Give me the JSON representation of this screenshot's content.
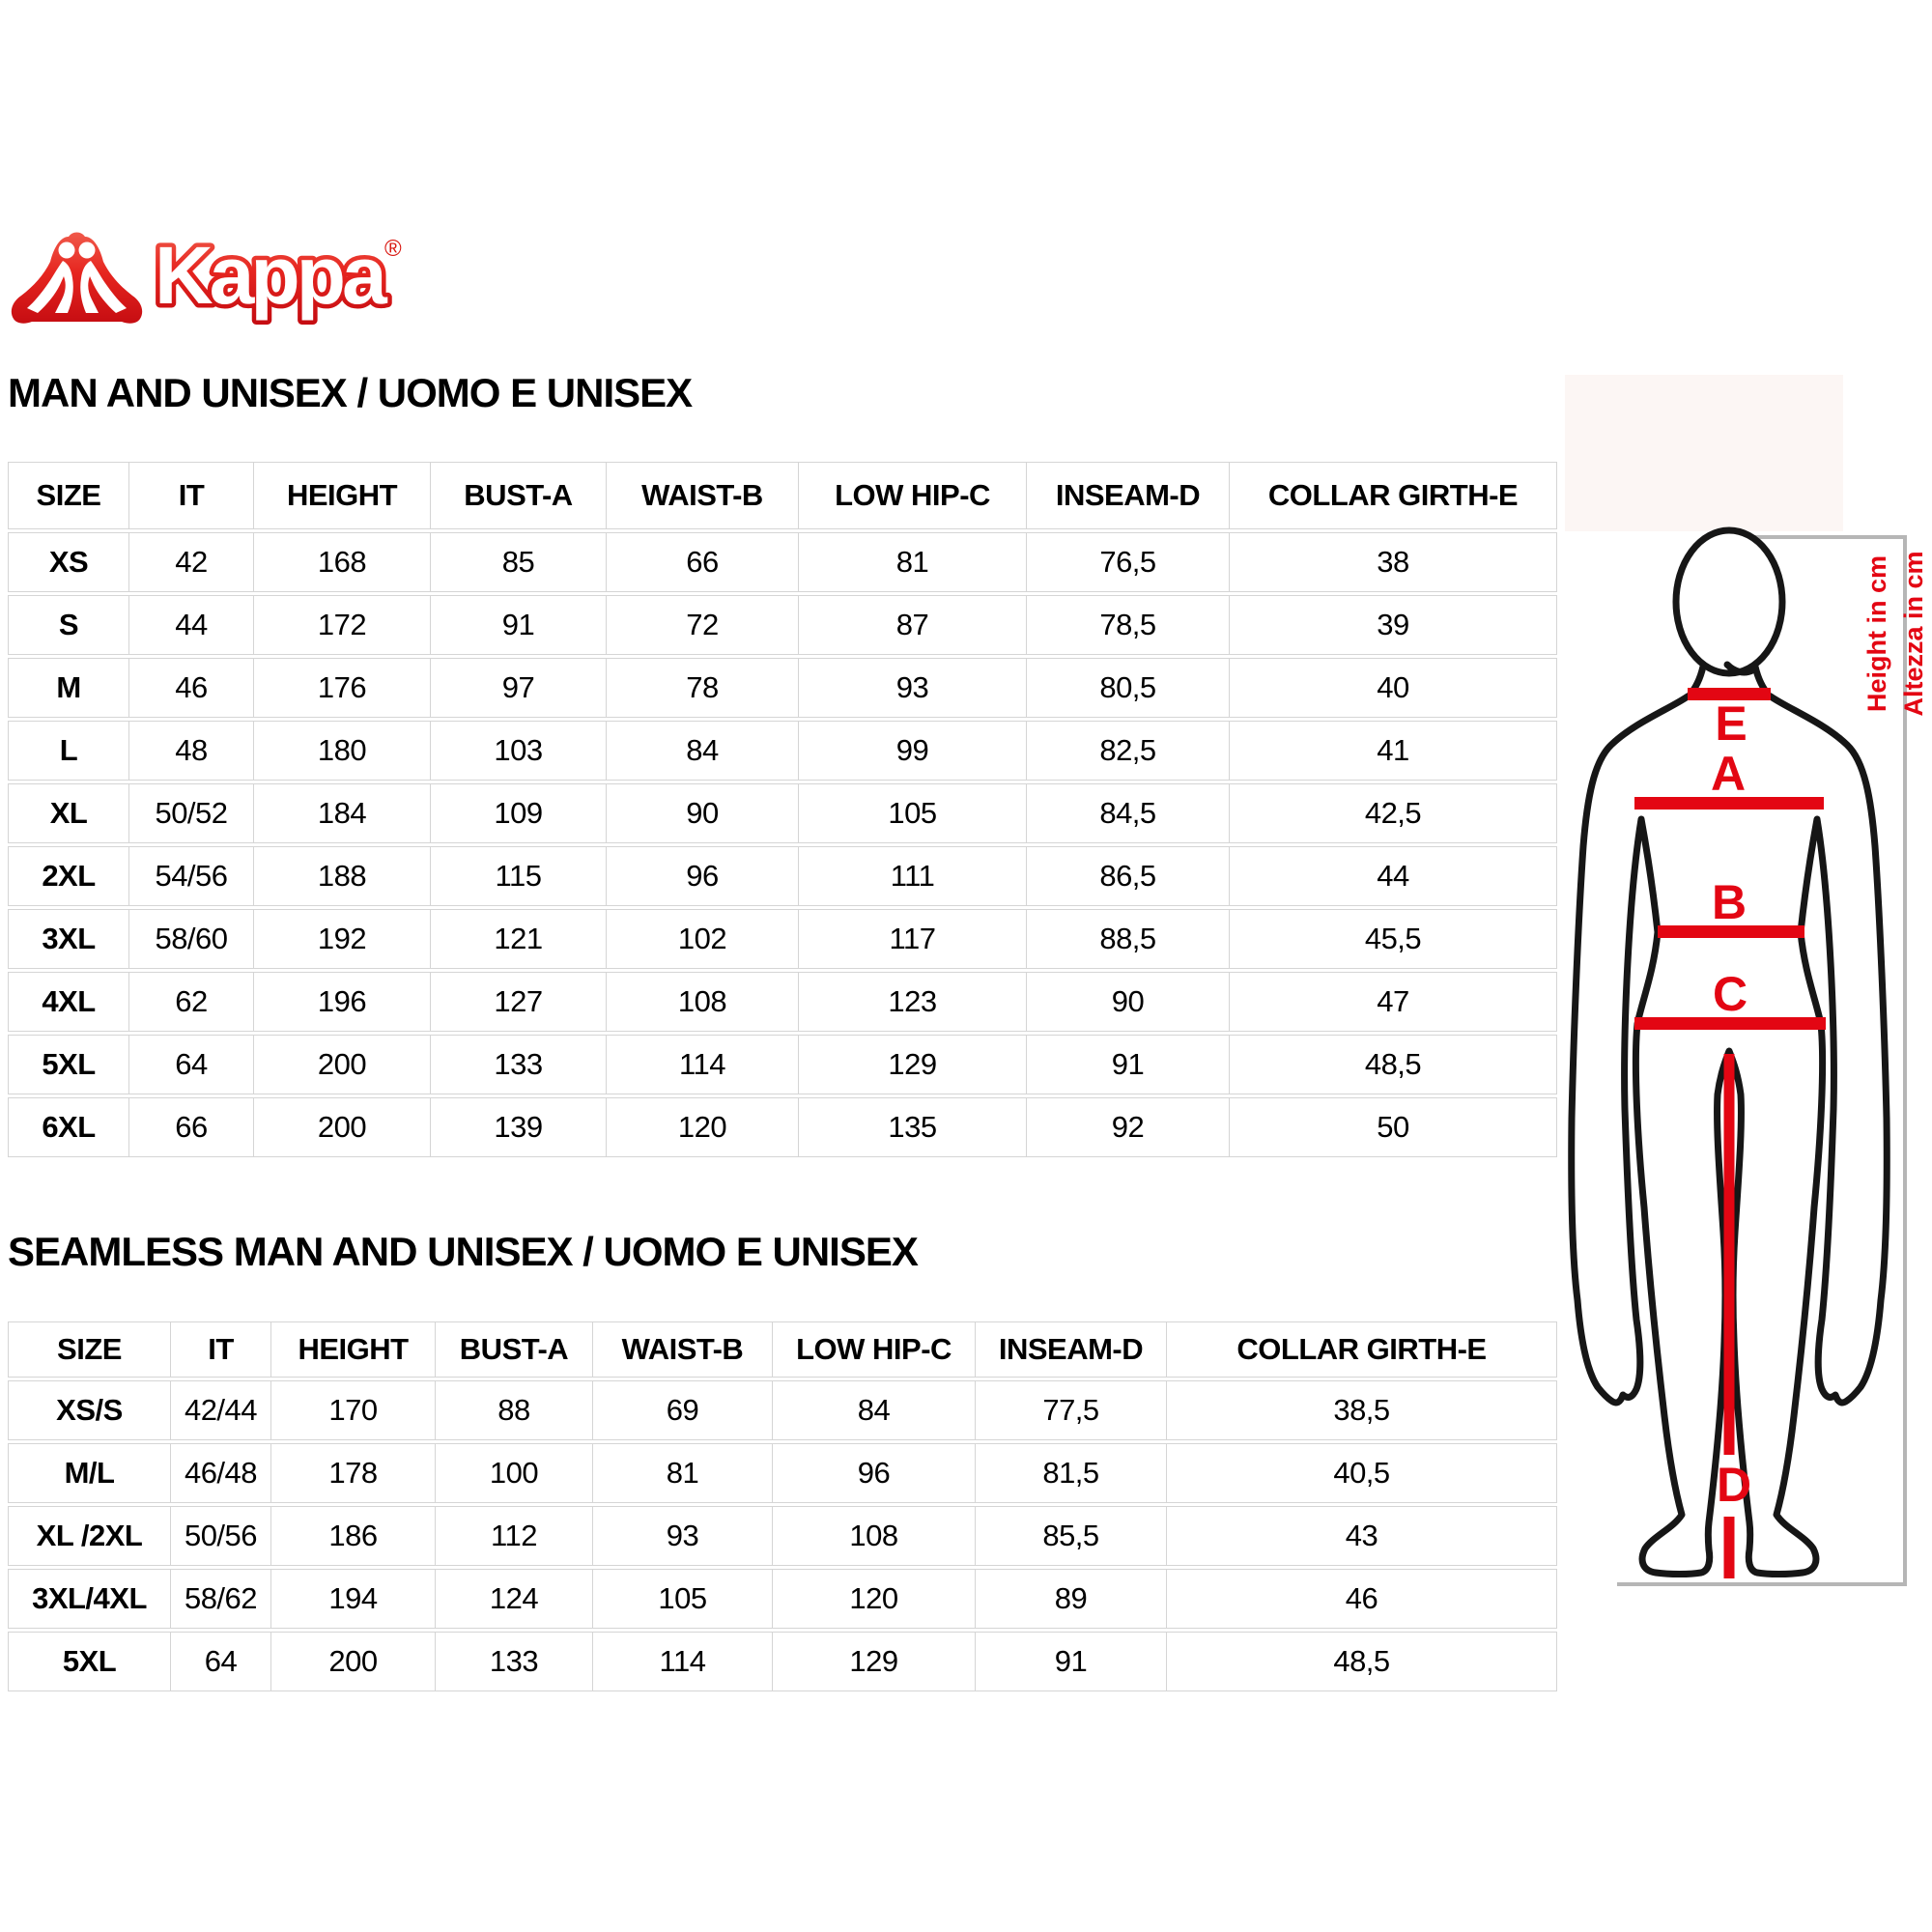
{
  "brand": {
    "name": "Kappa",
    "registered": "®"
  },
  "colors": {
    "accent_red": "#e30613",
    "logo_red_light": "#f0594a",
    "logo_red_dark": "#c60d12",
    "grid_gray": "#d5d5d5",
    "bracket_gray": "#b6b6b6"
  },
  "tables": {
    "man": {
      "title": "MAN AND UNISEX / UOMO E UNISEX",
      "columns": [
        "SIZE",
        "IT",
        "HEIGHT",
        "BUST-A",
        "WAIST-B",
        "LOW HIP-C",
        "INSEAM-D",
        "COLLAR GIRTH-E"
      ],
      "rows": [
        [
          "XS",
          "42",
          "168",
          "85",
          "66",
          "81",
          "76,5",
          "38"
        ],
        [
          "S",
          "44",
          "172",
          "91",
          "72",
          "87",
          "78,5",
          "39"
        ],
        [
          "M",
          "46",
          "176",
          "97",
          "78",
          "93",
          "80,5",
          "40"
        ],
        [
          "L",
          "48",
          "180",
          "103",
          "84",
          "99",
          "82,5",
          "41"
        ],
        [
          "XL",
          "50/52",
          "184",
          "109",
          "90",
          "105",
          "84,5",
          "42,5"
        ],
        [
          "2XL",
          "54/56",
          "188",
          "115",
          "96",
          "111",
          "86,5",
          "44"
        ],
        [
          "3XL",
          "58/60",
          "192",
          "121",
          "102",
          "117",
          "88,5",
          "45,5"
        ],
        [
          "4XL",
          "62",
          "196",
          "127",
          "108",
          "123",
          "90",
          "47"
        ],
        [
          "5XL",
          "64",
          "200",
          "133",
          "114",
          "129",
          "91",
          "48,5"
        ],
        [
          "6XL",
          "66",
          "200",
          "139",
          "120",
          "135",
          "92",
          "50"
        ]
      ]
    },
    "seamless": {
      "title": "SEAMLESS MAN AND UNISEX / UOMO E UNISEX",
      "columns": [
        "SIZE",
        "IT",
        "HEIGHT",
        "BUST-A",
        "WAIST-B",
        "LOW HIP-C",
        "INSEAM-D",
        "COLLAR GIRTH-E"
      ],
      "rows": [
        [
          "XS/S",
          "42/44",
          "170",
          "88",
          "69",
          "84",
          "77,5",
          "38,5"
        ],
        [
          "M/L",
          "46/48",
          "178",
          "100",
          "81",
          "96",
          "81,5",
          "40,5"
        ],
        [
          "XL /2XL",
          "50/56",
          "186",
          "112",
          "93",
          "108",
          "85,5",
          "43"
        ],
        [
          "3XL/4XL",
          "58/62",
          "194",
          "124",
          "105",
          "120",
          "89",
          "46"
        ],
        [
          "5XL",
          "64",
          "200",
          "133",
          "114",
          "129",
          "91",
          "48,5"
        ]
      ]
    }
  },
  "figure": {
    "labels": {
      "collar": "E",
      "bust": "A",
      "waist": "B",
      "low_hip": "C",
      "inseam": "D"
    },
    "height_note_en": "Height in cm",
    "height_note_it": "Altezza in cm"
  }
}
